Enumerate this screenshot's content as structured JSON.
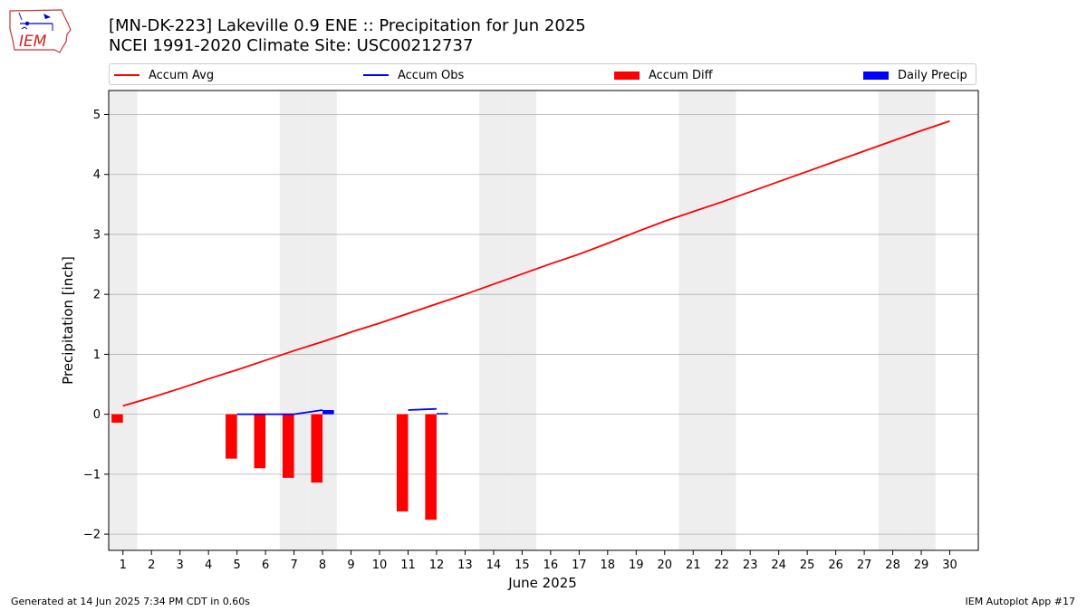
{
  "title": {
    "line1": "[MN-DK-223] Lakeville 0.9 ENE :: Precipitation for Jun 2025",
    "line2": "NCEI 1991-2020 Climate Site: USC00212737"
  },
  "logo": {
    "text": "IEM",
    "icon": "iowa-state-map-logo-icon"
  },
  "footer": {
    "left": "Generated at 14 Jun 2025 7:34 PM CDT in 0.60s",
    "right": "IEM Autoplot App #17"
  },
  "legend": {
    "accum_avg": "Accum Avg",
    "accum_obs": "Accum Obs",
    "accum_diff": "Accum Diff",
    "daily_precip": "Daily Precip"
  },
  "colors": {
    "accum_avg": "#ff0000",
    "accum_obs": "#0000ff",
    "accum_diff": "#ff0000",
    "daily_precip": "#0000ff",
    "weekend_shade": "#eeeeee",
    "grid": "#b0b0b0"
  },
  "chart_data": {
    "type": "bar",
    "xlabel": "June 2025",
    "ylabel": "Precipitation [inch]",
    "xlim": [
      0.5,
      31.0
    ],
    "ylim": [
      -2.27,
      5.4
    ],
    "x_ticks": [
      1,
      2,
      3,
      4,
      5,
      6,
      7,
      8,
      9,
      10,
      11,
      12,
      13,
      14,
      15,
      16,
      17,
      18,
      19,
      20,
      21,
      22,
      23,
      24,
      25,
      26,
      27,
      28,
      29,
      30
    ],
    "y_ticks": [
      -2,
      -1,
      0,
      1,
      2,
      3,
      4,
      5
    ],
    "y_grid": true,
    "legend_position": "top",
    "weekend_days": [
      1,
      7,
      8,
      14,
      15,
      21,
      22,
      28,
      29
    ],
    "series": [
      {
        "name": "Accum Avg",
        "type": "line",
        "x": [
          1,
          2,
          3,
          4,
          5,
          6,
          7,
          8,
          9,
          10,
          11,
          12,
          13,
          14,
          15,
          16,
          17,
          18,
          19,
          20,
          21,
          22,
          23,
          24,
          25,
          26,
          27,
          28,
          29,
          30
        ],
        "values": [
          0.14,
          0.28,
          0.43,
          0.59,
          0.74,
          0.9,
          1.06,
          1.21,
          1.37,
          1.52,
          1.68,
          1.84,
          2.0,
          2.17,
          2.34,
          2.51,
          2.67,
          2.85,
          3.04,
          3.22,
          3.38,
          3.54,
          3.71,
          3.88,
          4.05,
          4.22,
          4.39,
          4.56,
          4.73,
          4.89
        ]
      },
      {
        "name": "Accum Obs",
        "type": "line",
        "segments": [
          {
            "x": [
              5,
              6,
              7,
              8
            ],
            "values": [
              0.0,
              0.0,
              0.0,
              0.07
            ]
          },
          {
            "x": [
              11,
              12
            ],
            "values": [
              0.07,
              0.09
            ]
          }
        ]
      },
      {
        "name": "Accum Diff",
        "type": "bar",
        "x": [
          1,
          5,
          6,
          7,
          8,
          11,
          12
        ],
        "values": [
          -0.14,
          -0.74,
          -0.9,
          -1.06,
          -1.14,
          -1.62,
          -1.76
        ]
      },
      {
        "name": "Daily Precip",
        "type": "bar",
        "x": [
          8,
          12
        ],
        "values": [
          0.07,
          0.02
        ]
      }
    ]
  }
}
